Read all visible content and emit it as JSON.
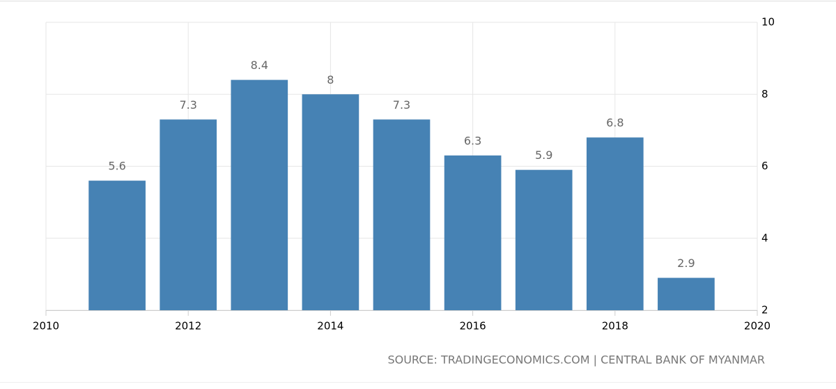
{
  "chart_data": {
    "type": "bar",
    "x": [
      2011,
      2012,
      2013,
      2014,
      2015,
      2016,
      2017,
      2018,
      2019
    ],
    "values": [
      5.6,
      7.3,
      8.4,
      8,
      7.3,
      6.3,
      5.9,
      6.8,
      2.9
    ],
    "color": "#4682b4",
    "xlim": [
      2010,
      2020
    ],
    "xticks": [
      2010,
      2012,
      2014,
      2016,
      2018,
      2020
    ],
    "ylim": [
      2,
      10
    ],
    "yticks": [
      2,
      4,
      6,
      8,
      10
    ],
    "grid": true,
    "source": "SOURCE: TRADINGECONOMICS.COM | CENTRAL BANK OF MYANMAR"
  }
}
